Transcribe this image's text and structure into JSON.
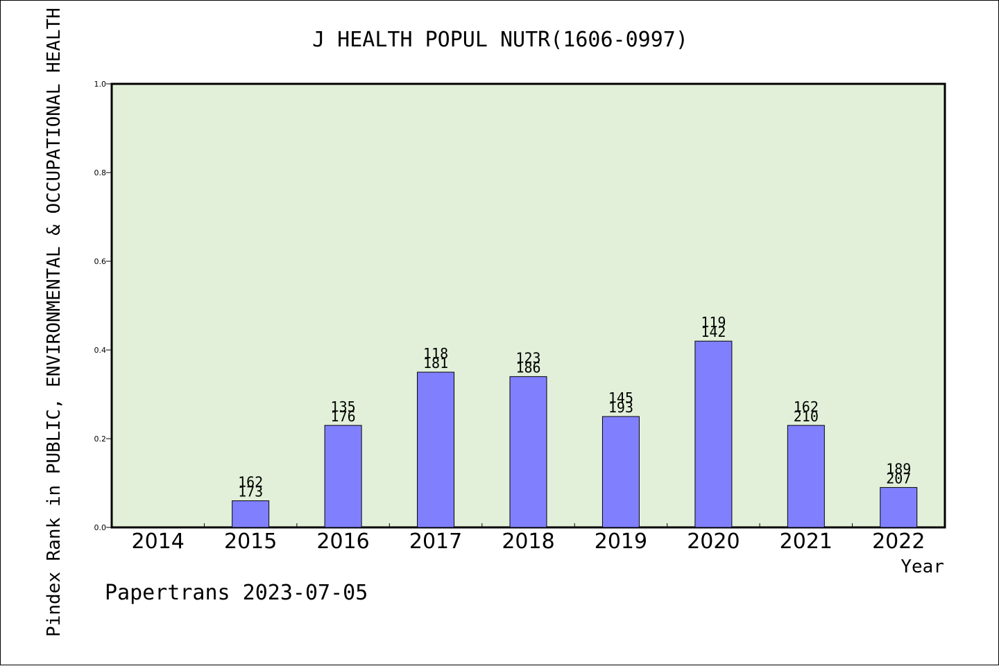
{
  "chart_data": {
    "type": "bar",
    "title": "J HEALTH POPUL NUTR(1606-0997)",
    "xlabel": "Year",
    "ylabel": "Pindex Rank in PUBLIC, ENVIRONMENTAL & OCCUPATIONAL HEALTH",
    "categories": [
      "2014",
      "2015",
      "2016",
      "2017",
      "2018",
      "2019",
      "2020",
      "2021",
      "2022"
    ],
    "values": [
      0,
      0.06,
      0.23,
      0.35,
      0.34,
      0.25,
      0.42,
      0.23,
      0.09
    ],
    "labels_top": [
      "",
      "162",
      "135",
      "118",
      "123",
      "145",
      "119",
      "162",
      "189"
    ],
    "labels_bottom": [
      "",
      "173",
      "176",
      "181",
      "186",
      "193",
      "142",
      "210",
      "207"
    ],
    "ylim": [
      0,
      1.0
    ],
    "yticks": [
      "0.0",
      "0.2",
      "0.4",
      "0.6",
      "0.8",
      "1.0"
    ],
    "grid": false,
    "plot_background": "#e2f0d9",
    "bar_color": "#8080ff",
    "footer": "Papertrans 2023-07-05"
  }
}
